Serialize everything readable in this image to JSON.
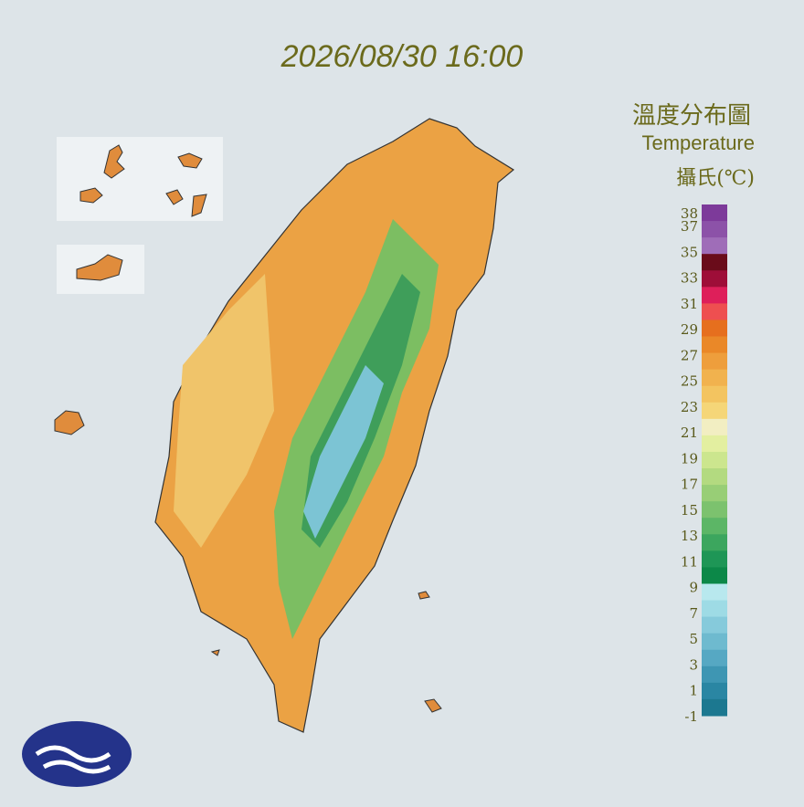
{
  "timestamp": "2026/08/30 16:00",
  "legend": {
    "title": "溫度分布圖",
    "subtitle": "Temperature",
    "unit": "攝氏(℃)",
    "labels": [
      38,
      37,
      35,
      33,
      31,
      29,
      27,
      25,
      23,
      21,
      19,
      17,
      15,
      13,
      11,
      9,
      7,
      5,
      3,
      1,
      -1
    ],
    "colors": [
      "#7d3a9a",
      "#8c52a8",
      "#9f6db8",
      "#6a0c1a",
      "#9e0e38",
      "#de1f5a",
      "#ee4f50",
      "#e66f1e",
      "#ea8828",
      "#ee9e3c",
      "#f1b24e",
      "#f3c460",
      "#f5d678",
      "#f2eec2",
      "#e3efa0",
      "#cce68e",
      "#b3da80",
      "#98ce76",
      "#7cc26e",
      "#5cb666",
      "#3ca65e",
      "#1e9656",
      "#0c8848",
      "#b8e8ee",
      "#9edbe5",
      "#86cadb",
      "#6ebacf",
      "#56a8c3",
      "#3e96b3",
      "#2a86a3",
      "#1c7890"
    ]
  }
}
